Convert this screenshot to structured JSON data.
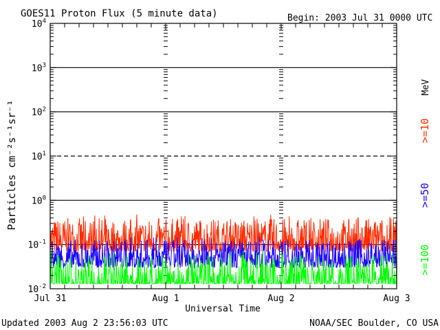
{
  "chart_data": {
    "type": "line",
    "title": "GOES11 Proton Flux (5 minute data)",
    "begin": "Begin: 2003 Jul 31 0000 UTC",
    "xlabel": "Universal Time",
    "ylabel": "Particles cm⁻²s⁻¹sr⁻¹",
    "y_scale": "log",
    "ylim": [
      0.01,
      10000
    ],
    "y_ticks": [
      {
        "base": "10",
        "exp": "4"
      },
      {
        "base": "10",
        "exp": "3"
      },
      {
        "base": "10",
        "exp": "2"
      },
      {
        "base": "10",
        "exp": "1"
      },
      {
        "base": "10",
        "exp": "0"
      },
      {
        "base": "10",
        "exp": "-1"
      },
      {
        "base": "10",
        "exp": "-2"
      }
    ],
    "x_ticks": [
      "Jul 31",
      "Aug 1",
      "Aug 2",
      "Aug 3"
    ],
    "xlim": [
      "2003-07-31 00:00",
      "2003-08-03 00:00"
    ],
    "unit_label": "MeV",
    "series": [
      {
        "name": ">=10",
        "color": "#ff2a00",
        "typical_range": [
          0.07,
          0.4
        ],
        "peak": 0.5
      },
      {
        "name": ">=50",
        "color": "#1a00ff",
        "typical_range": [
          0.03,
          0.13
        ],
        "peak": 0.15
      },
      {
        "name": ">=100",
        "color": "#00ff00",
        "typical_range": [
          0.013,
          0.06
        ],
        "peak": 0.08
      }
    ]
  },
  "footer": {
    "updated": "Updated 2003 Aug  2 23:56:03 UTC",
    "source": "NOAA/SEC Boulder, CO USA"
  }
}
